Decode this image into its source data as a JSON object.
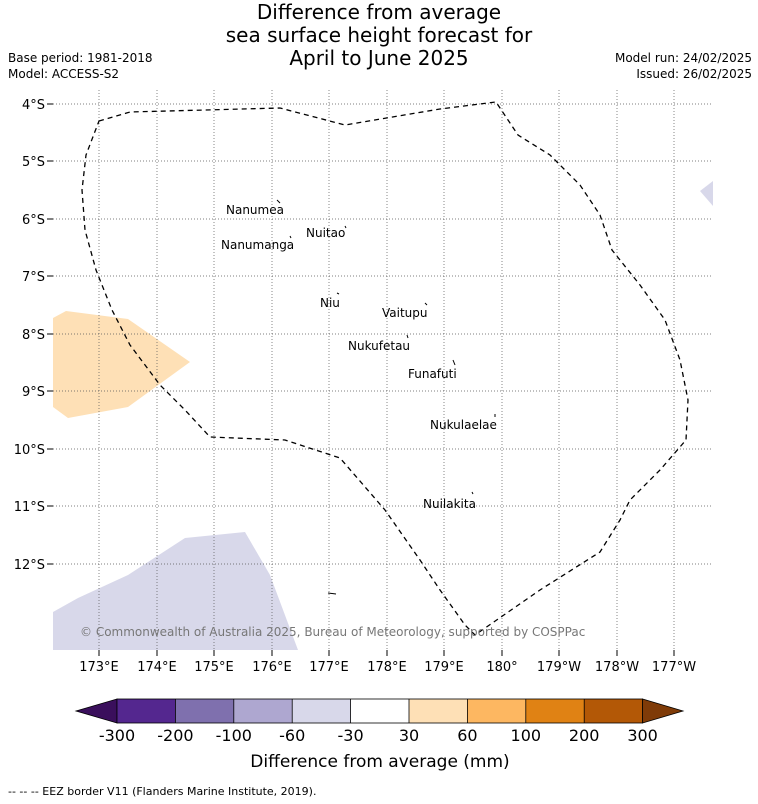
{
  "title": {
    "line1": "Difference from average",
    "line2": "sea surface height forecast for",
    "line3": "April to June 2025"
  },
  "meta": {
    "base_period": "Base period: 1981-2018",
    "model": "Model: ACCESS-S2",
    "model_run": "Model run: 24/02/2025",
    "issued": "Issued: 26/02/2025"
  },
  "map": {
    "lat_labels": [
      "4°S",
      "5°S",
      "6°S",
      "7°S",
      "8°S",
      "9°S",
      "10°S",
      "11°S",
      "12°S"
    ],
    "lon_labels": [
      "173°E",
      "174°E",
      "175°E",
      "176°E",
      "177°E",
      "178°E",
      "179°E",
      "180°",
      "179°W",
      "178°W",
      "177°W"
    ],
    "islands": [
      "Nanumea",
      "Nuitao",
      "Nanumanga",
      "Niu",
      "Vaitupu",
      "Nukufetau",
      "Funafuti",
      "Nukulaelae",
      "Nuilakita"
    ],
    "copyright": "© Commonwealth of Australia 2025, Bureau of Meteorology, supported by COSPPac"
  },
  "colorbar": {
    "tick_labels": [
      "-300",
      "-200",
      "-100",
      "-60",
      "-30",
      "30",
      "60",
      "100",
      "200",
      "300"
    ],
    "colors": [
      "#3a0f5c",
      "#54278f",
      "#7f70ae",
      "#aea7d0",
      "#d8d8ea",
      "#ffffff",
      "#fee0b6",
      "#fdb761",
      "#e08214",
      "#b35806",
      "#7f3b08"
    ],
    "label": "Difference from average (mm)"
  },
  "footer": "--  --  -- EEZ border V11 (Flanders Marine Institute, 2019)."
}
